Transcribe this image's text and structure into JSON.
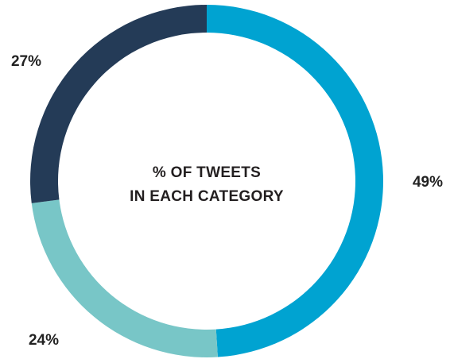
{
  "chart_data": {
    "type": "pie",
    "style": "donut",
    "title": "",
    "center_label_lines": [
      "% OF TWEETS",
      "IN EACH CATEGORY"
    ],
    "slices": [
      {
        "label": "49%",
        "value": 49,
        "color": "#00a3d1"
      },
      {
        "label": "24%",
        "value": 24,
        "color": "#78c6c7"
      },
      {
        "label": "27%",
        "value": 27,
        "color": "#243b57"
      }
    ],
    "start_position": "top",
    "direction": "clockwise",
    "legend": "none"
  }
}
